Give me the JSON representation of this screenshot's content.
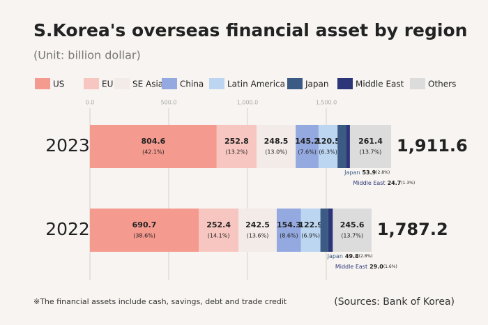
{
  "chart_data": {
    "type": "stacked_bar_horizontal",
    "title": "S.Korea's overseas financial asset by region",
    "subtitle": "(Unit: billion dollar)",
    "categories": [
      "2023",
      "2022"
    ],
    "series": [
      {
        "name": "US",
        "color": "#f59a8f",
        "values": [
          804.6,
          690.7
        ],
        "percent_labels": [
          "(42.1%)",
          "(38.6%)"
        ]
      },
      {
        "name": "EU",
        "color": "#f8c6c0",
        "values": [
          252.8,
          252.4
        ],
        "percent_labels": [
          "(13.2%)",
          "(14.1%)"
        ]
      },
      {
        "name": "SE Asia",
        "color": "#f3ebe7",
        "values": [
          248.5,
          242.5
        ],
        "percent_labels": [
          "(13.0%)",
          "(13.6%)"
        ]
      },
      {
        "name": "China",
        "color": "#94a9e0",
        "values": [
          145.2,
          154.3
        ],
        "percent_labels": [
          "(7.6%)",
          "(8.6%)"
        ]
      },
      {
        "name": "Latin America",
        "color": "#bcd6f2",
        "values": [
          120.5,
          122.9
        ],
        "percent_labels": [
          "(6.3%)",
          "(6.9%)"
        ]
      },
      {
        "name": "Japan",
        "color": "#3b5b85",
        "values": [
          53.9,
          49.8
        ],
        "percent_labels": [
          "(2.8%)",
          "(2.8%)"
        ]
      },
      {
        "name": "Middle East",
        "color": "#2c3578",
        "values": [
          24.7,
          29.0
        ],
        "value_labels": [
          "24.7",
          "29.0"
        ],
        "percent_labels": [
          "(1.3%)",
          "(1.6%)"
        ]
      },
      {
        "name": "Others",
        "color": "#dcdcdc",
        "values": [
          261.4,
          245.6
        ],
        "percent_labels": [
          "(13.7%)",
          "(13.7%)"
        ]
      }
    ],
    "totals": [
      {
        "value": 1911.6,
        "label": "1,911.6"
      },
      {
        "value": 1787.2,
        "label": "1,787.2"
      }
    ],
    "xlim": [
      0,
      2000
    ],
    "xticks": [
      {
        "value": 0,
        "label": "0.0"
      },
      {
        "value": 500,
        "label": "500.0"
      },
      {
        "value": 1000,
        "label": "1,000.0"
      },
      {
        "value": 1500,
        "label": "1,500.0"
      }
    ],
    "grid": true,
    "footnote": "※The financial assets include cash, savings, debt and trade credit",
    "source": "(Sources: Bank of Korea)"
  }
}
